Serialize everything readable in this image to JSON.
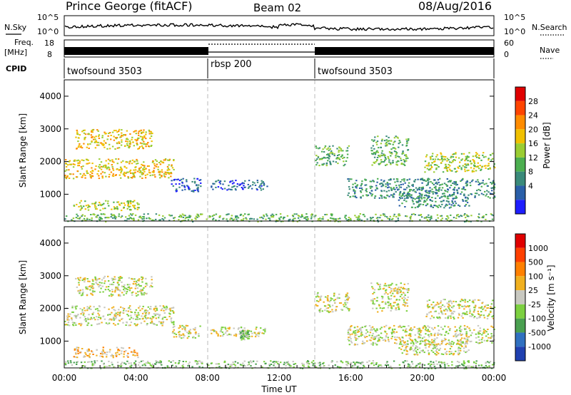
{
  "header": {
    "station": "Prince George (fitACF)",
    "beam": "Beam 02",
    "date": "08/Aug/2016"
  },
  "summary_panels": {
    "nsky_label": "N.Sky",
    "nsearch_label": "N.Search",
    "noise_ticks": [
      "10^5",
      "10^0"
    ],
    "freq_label_line1": "Freq.",
    "freq_label_line2": "[MHz]",
    "freq_ticks": [
      "18",
      "8"
    ],
    "nave_label": "Nave",
    "nave_ticks": [
      "60",
      "0"
    ],
    "cpid_label": "CPID"
  },
  "cpid_segments": [
    {
      "label": "twofsound 3503",
      "start_h": 0,
      "end_h": 8
    },
    {
      "label": "rbsp 200",
      "start_h": 8,
      "end_h": 14
    },
    {
      "label": "twofsound 3503",
      "start_h": 14,
      "end_h": 24
    }
  ],
  "colors": {
    "power_scale": [
      "#1e1eff",
      "#2a5fa8",
      "#3a8a7a",
      "#4caf50",
      "#9acd32",
      "#f0c000",
      "#ff8c00",
      "#ff4500",
      "#e00000"
    ],
    "velocity_scale": [
      "#2040b0",
      "#3070c0",
      "#4aa050",
      "#7cd040",
      "#c8c8c0",
      "#f0b020",
      "#ff8000",
      "#ff4000",
      "#e00000"
    ],
    "boundary_line": "#bbbbbb"
  },
  "chart_data": [
    {
      "type": "heatmap",
      "name": "power",
      "ylabel": "Slant Range [km]",
      "ylim": [
        180,
        4500
      ],
      "xlim_hours": [
        0,
        24
      ],
      "yticks": [
        "1000",
        "2000",
        "3000",
        "4000"
      ],
      "colorbar": {
        "label": "Power [dB]",
        "ticks": [
          "28",
          "24",
          "20",
          "16",
          "12",
          "8",
          "4"
        ]
      },
      "regions": [
        {
          "t0": 0.0,
          "t1": 6.1,
          "r0": 1500,
          "r1": 2100,
          "level": 5
        },
        {
          "t0": 0.6,
          "t1": 4.9,
          "r0": 2400,
          "r1": 3000,
          "level": 5
        },
        {
          "t0": 0.5,
          "t1": 4.2,
          "r0": 520,
          "r1": 830,
          "level": 4
        },
        {
          "t0": 0.0,
          "t1": 24.0,
          "r0": 180,
          "r1": 420,
          "level": 3
        },
        {
          "t0": 5.9,
          "t1": 7.6,
          "r0": 1100,
          "r1": 1500,
          "level": 1
        },
        {
          "t0": 8.1,
          "t1": 11.3,
          "r0": 1150,
          "r1": 1450,
          "level": 1
        },
        {
          "t0": 14.0,
          "t1": 15.9,
          "r0": 1900,
          "r1": 2500,
          "level": 3
        },
        {
          "t0": 15.8,
          "t1": 24.0,
          "r0": 900,
          "r1": 1500,
          "level": 2
        },
        {
          "t0": 17.1,
          "t1": 19.2,
          "r0": 1900,
          "r1": 2800,
          "level": 3
        },
        {
          "t0": 20.1,
          "t1": 24.0,
          "r0": 1700,
          "r1": 2300,
          "level": 4
        },
        {
          "t0": 18.6,
          "t1": 22.6,
          "r0": 600,
          "r1": 1050,
          "level": 2
        }
      ]
    },
    {
      "type": "heatmap",
      "name": "velocity",
      "ylabel": "Slant Range [km]",
      "xlabel": "Time UT",
      "ylim": [
        180,
        4500
      ],
      "xlim_hours": [
        0,
        24
      ],
      "yticks": [
        "1000",
        "2000",
        "3000",
        "4000"
      ],
      "xticks": [
        "00:00",
        "04:00",
        "08:00",
        "12:00",
        "16:00",
        "20:00",
        "00:00"
      ],
      "colorbar": {
        "label": "Velocity [m s⁻¹]",
        "ticks": [
          "1000",
          "500",
          "100",
          "25",
          "-25",
          "-100",
          "-500",
          "-1000"
        ]
      },
      "regions": [
        {
          "t0": 0.0,
          "t1": 6.1,
          "r0": 1500,
          "r1": 2100,
          "level": 4
        },
        {
          "t0": 0.6,
          "t1": 4.9,
          "r0": 2400,
          "r1": 3000,
          "level": 4
        },
        {
          "t0": 0.5,
          "t1": 4.2,
          "r0": 520,
          "r1": 830,
          "level": 5
        },
        {
          "t0": 0.0,
          "t1": 24.0,
          "r0": 180,
          "r1": 420,
          "level": 3
        },
        {
          "t0": 6.0,
          "t1": 7.6,
          "r0": 1100,
          "r1": 1500,
          "level": 4
        },
        {
          "t0": 8.1,
          "t1": 11.3,
          "r0": 1150,
          "r1": 1450,
          "level": 4
        },
        {
          "t0": 9.8,
          "t1": 10.3,
          "r0": 1050,
          "r1": 1350,
          "level": 3
        },
        {
          "t0": 14.0,
          "t1": 15.9,
          "r0": 1900,
          "r1": 2500,
          "level": 4
        },
        {
          "t0": 15.8,
          "t1": 24.0,
          "r0": 900,
          "r1": 1500,
          "level": 4
        },
        {
          "t0": 17.1,
          "t1": 19.2,
          "r0": 1900,
          "r1": 2800,
          "level": 4
        },
        {
          "t0": 20.1,
          "t1": 24.0,
          "r0": 1700,
          "r1": 2300,
          "level": 4
        },
        {
          "t0": 18.6,
          "t1": 22.6,
          "r0": 600,
          "r1": 1050,
          "level": 4
        }
      ]
    }
  ]
}
